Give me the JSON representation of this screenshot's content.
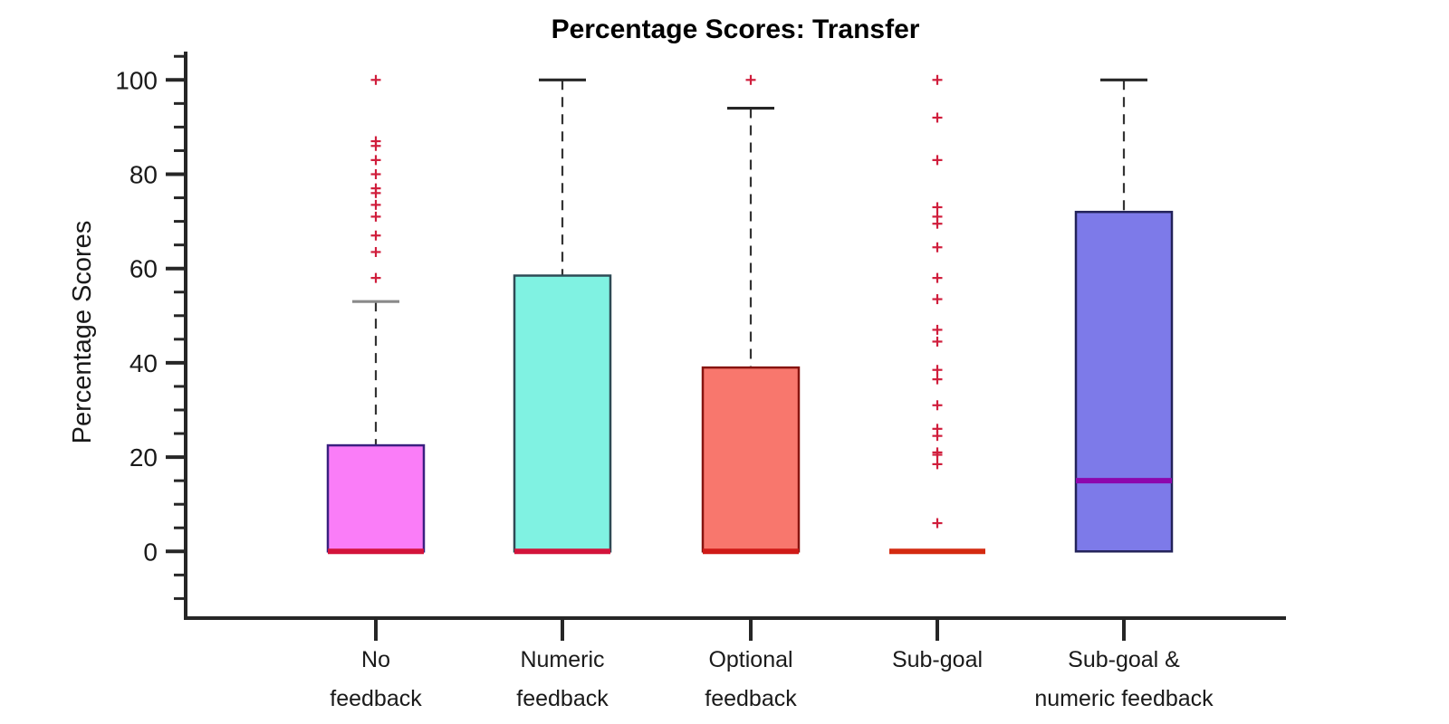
{
  "page": {
    "background": "#ffffff"
  },
  "chart_data": {
    "type": "box",
    "title": "Percentage Scores: Transfer",
    "ylabel": "Percentage Scores",
    "yticks": [
      0,
      20,
      40,
      60,
      80,
      100
    ],
    "ytick_labels": [
      "0",
      "20",
      "40",
      "60",
      "80",
      "100"
    ],
    "minor_tick_step": 5,
    "minor_tick_range": [
      -10,
      105
    ],
    "ylim": [
      -14,
      106
    ],
    "grid": false,
    "legend": null,
    "axis_color": "#262626",
    "whisker_style": "dashed",
    "whisker_color": "#333333",
    "outlier_marker": "+",
    "outlier_color": "#d01e3c",
    "categories": [
      "No feedback",
      "Numeric feedback",
      "Optional feedback",
      "Sub-goal",
      "Sub-goal & numeric feedback"
    ],
    "category_label_lines": [
      [
        "No",
        "feedback"
      ],
      [
        "Numeric",
        "feedback"
      ],
      [
        "Optional",
        "feedback"
      ],
      [
        "Sub-goal"
      ],
      [
        "Sub-goal &",
        "numeric feedback"
      ]
    ],
    "series": [
      {
        "name": "No feedback",
        "q1": 0,
        "median": 0,
        "q3": 22.5,
        "whisker_low": 0,
        "whisker_high": 53,
        "outliers": [
          58,
          63.5,
          67,
          71,
          73.5,
          76,
          77,
          80,
          83,
          86,
          87,
          100
        ],
        "fill": "#fa7df8",
        "border": "#3a2080",
        "median_color": "#d3133b",
        "cap_color": "#8a8a8a"
      },
      {
        "name": "Numeric feedback",
        "q1": 0,
        "median": 0,
        "q3": 58.5,
        "whisker_low": 0,
        "whisker_high": 100,
        "outliers": [],
        "fill": "#80f2e2",
        "border": "#2e4a55",
        "median_color": "#d3133b",
        "cap_color": "#262626"
      },
      {
        "name": "Optional feedback",
        "q1": 0,
        "median": 0,
        "q3": 39,
        "whisker_low": 0,
        "whisker_high": 94,
        "outliers": [
          100
        ],
        "fill": "#f8776d",
        "border": "#871410",
        "median_color": "#cf1a17",
        "cap_color": "#262626"
      },
      {
        "name": "Sub-goal",
        "q1": 0,
        "median": 0,
        "q3": 0,
        "whisker_low": 0,
        "whisker_high": 0,
        "outliers": [
          6,
          18.5,
          20.5,
          21,
          24.5,
          26,
          31,
          36.5,
          38.5,
          44.5,
          47,
          53.5,
          58,
          64.5,
          69.5,
          71,
          73,
          83,
          92,
          100
        ],
        "fill": "none",
        "border": "#b02018",
        "median_color": "#d42a10",
        "cap_color": "#262626"
      },
      {
        "name": "Sub-goal & numeric feedback",
        "q1": 0,
        "median": 15,
        "q3": 72,
        "whisker_low": 0,
        "whisker_high": 100,
        "outliers": [],
        "fill": "#7d7ae9",
        "border": "#23235a",
        "median_color": "#8d07ad",
        "cap_color": "#262626"
      }
    ]
  }
}
